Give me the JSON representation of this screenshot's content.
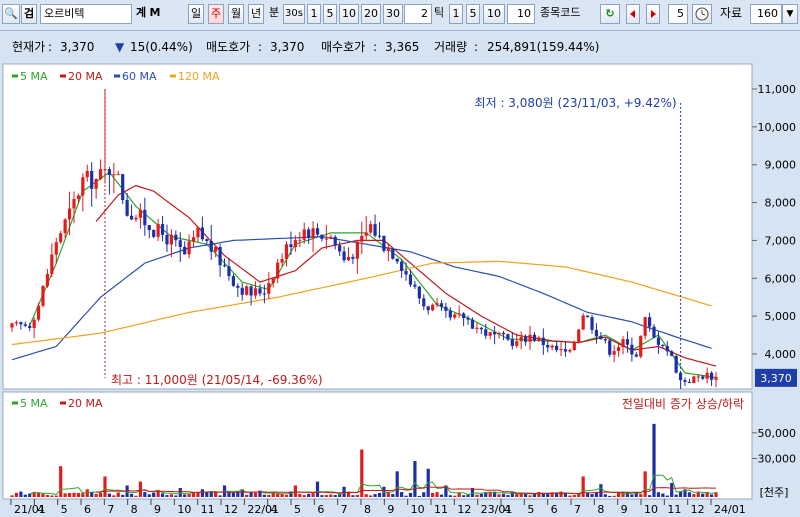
{
  "toolbar": {
    "search_icon_glyph": "🔍",
    "search_button_label": "검",
    "stock_name": "오르비텍",
    "btn_gye": "계",
    "btn_m": "M",
    "period_tabs": [
      "일",
      "주",
      "월",
      "년",
      "분",
      "30s",
      "1",
      "5",
      "10",
      "20",
      "30"
    ],
    "selected_period": "주",
    "tick_value": "2",
    "tick_label": "틱",
    "tick_buttons": [
      "1",
      "5",
      "10"
    ],
    "tick_input": "10",
    "compare_label": "종목코드",
    "scroll_value": "5",
    "data_label": "자료",
    "data_count": "160",
    "dropdown_glyph": "▼"
  },
  "quote": {
    "price_label": "현재가",
    "price": "3,370",
    "change_arrow": "▼",
    "change": "15(0.44%)",
    "ask_label": "매도호가",
    "ask": "3,370",
    "bid_label": "매수호가",
    "bid": "3,365",
    "volume_label": "거래량",
    "volume": "254,891(159.44%)"
  },
  "colors": {
    "ma5": "#2ca52c",
    "ma20": "#c21818",
    "ma60": "#2a4fb0",
    "ma120": "#f0a21e",
    "up": "#e21b1b",
    "down": "#1c2fa8",
    "accent_blue": "#1f3ea8"
  },
  "chart_data": [
    {
      "type": "candlestick",
      "legend": [
        "5 MA",
        "20 MA",
        "60 MA",
        "120 MA"
      ],
      "ylim": [
        3000,
        11300
      ],
      "y_ticks": [
        "4,000",
        "5,000",
        "6,000",
        "7,000",
        "8,000",
        "9,000",
        "10,000",
        "11,000"
      ],
      "x_ticks": [
        "21/01",
        "4",
        "5",
        "6",
        "7",
        "8",
        "9",
        "10",
        "11",
        "12",
        "22/01",
        "4",
        "5",
        "6",
        "7",
        "8",
        "9",
        "10",
        "11",
        "12",
        "23/01",
        "4",
        "5",
        "6",
        "7",
        "8",
        "9",
        "10",
        "11",
        "12",
        "24/01"
      ],
      "last_price": "3,370",
      "last_value": 3370,
      "annotations": [
        "최저 : 3,080원 (23/11/03, +9.42%)",
        "최고 : 11,000원 (21/05/14, -69.36%)"
      ],
      "close_anchors": [
        [
          0,
          4700
        ],
        [
          4,
          4800
        ],
        [
          6,
          5300
        ],
        [
          10,
          7000
        ],
        [
          13,
          7700
        ],
        [
          16,
          8600
        ],
        [
          19,
          8600
        ],
        [
          21,
          8800
        ],
        [
          23,
          9000
        ],
        [
          26,
          7800
        ],
        [
          29,
          7600
        ],
        [
          32,
          7300
        ],
        [
          36,
          7000
        ],
        [
          39,
          6600
        ],
        [
          42,
          7200
        ],
        [
          45,
          6800
        ],
        [
          48,
          6300
        ],
        [
          51,
          5800
        ],
        [
          54,
          5600
        ],
        [
          57,
          5700
        ],
        [
          60,
          6400
        ],
        [
          63,
          7000
        ],
        [
          66,
          7300
        ],
        [
          69,
          7200
        ],
        [
          72,
          7100
        ],
        [
          75,
          6500
        ],
        [
          78,
          6800
        ],
        [
          81,
          7400
        ],
        [
          84,
          6900
        ],
        [
          87,
          6600
        ],
        [
          90,
          5900
        ],
        [
          93,
          5300
        ],
        [
          96,
          5200
        ],
        [
          99,
          4900
        ],
        [
          102,
          5000
        ],
        [
          105,
          4700
        ],
        [
          108,
          4500
        ],
        [
          111,
          4400
        ],
        [
          114,
          4300
        ],
        [
          117,
          4500
        ],
        [
          120,
          4300
        ],
        [
          123,
          4100
        ],
        [
          126,
          4000
        ],
        [
          129,
          5100
        ],
        [
          132,
          4600
        ],
        [
          135,
          4100
        ],
        [
          138,
          4300
        ],
        [
          141,
          4000
        ],
        [
          143,
          4900
        ],
        [
          145,
          4400
        ],
        [
          147,
          4300
        ],
        [
          149,
          3900
        ],
        [
          151,
          3300
        ],
        [
          153,
          3300
        ],
        [
          155,
          3400
        ],
        [
          157,
          3450
        ],
        [
          159,
          3370
        ]
      ],
      "ma_anchors": {
        "ma5": [
          [
            4,
            4750
          ],
          [
            10,
            6400
          ],
          [
            16,
            8300
          ],
          [
            22,
            8800
          ],
          [
            28,
            7900
          ],
          [
            36,
            7100
          ],
          [
            44,
            6900
          ],
          [
            52,
            5900
          ],
          [
            58,
            5700
          ],
          [
            64,
            6900
          ],
          [
            72,
            7200
          ],
          [
            80,
            7200
          ],
          [
            88,
            6500
          ],
          [
            96,
            5300
          ],
          [
            104,
            4900
          ],
          [
            112,
            4400
          ],
          [
            120,
            4350
          ],
          [
            128,
            4300
          ],
          [
            134,
            4500
          ],
          [
            140,
            4100
          ],
          [
            146,
            4500
          ],
          [
            152,
            3500
          ],
          [
            159,
            3380
          ]
        ],
        "ma20": [
          [
            19,
            7500
          ],
          [
            24,
            8200
          ],
          [
            28,
            8450
          ],
          [
            32,
            8300
          ],
          [
            40,
            7600
          ],
          [
            48,
            6600
          ],
          [
            56,
            5900
          ],
          [
            64,
            6200
          ],
          [
            70,
            6800
          ],
          [
            78,
            7000
          ],
          [
            84,
            7000
          ],
          [
            90,
            6400
          ],
          [
            98,
            5600
          ],
          [
            106,
            5000
          ],
          [
            114,
            4500
          ],
          [
            122,
            4350
          ],
          [
            128,
            4300
          ],
          [
            134,
            4450
          ],
          [
            140,
            4100
          ],
          [
            146,
            4200
          ],
          [
            152,
            3900
          ],
          [
            159,
            3680
          ]
        ],
        "ma60": [
          [
            0,
            3850
          ],
          [
            10,
            4200
          ],
          [
            20,
            5500
          ],
          [
            30,
            6400
          ],
          [
            40,
            6800
          ],
          [
            50,
            7000
          ],
          [
            60,
            7050
          ],
          [
            70,
            7100
          ],
          [
            80,
            6900
          ],
          [
            90,
            6700
          ],
          [
            100,
            6300
          ],
          [
            110,
            6050
          ],
          [
            120,
            5600
          ],
          [
            130,
            5100
          ],
          [
            140,
            4850
          ],
          [
            150,
            4450
          ],
          [
            158,
            4150
          ]
        ],
        "ma120": [
          [
            0,
            4250
          ],
          [
            20,
            4550
          ],
          [
            40,
            5100
          ],
          [
            60,
            5500
          ],
          [
            80,
            6000
          ],
          [
            95,
            6400
          ],
          [
            110,
            6450
          ],
          [
            125,
            6300
          ],
          [
            140,
            5900
          ],
          [
            158,
            5270
          ]
        ]
      }
    },
    {
      "type": "bar",
      "title": "전일대비 증가 상승/하락",
      "legend": [
        "5 MA",
        "20 MA"
      ],
      "y_ticks": [
        "30,000",
        "50,000"
      ],
      "unit": "[천주]",
      "ylim": [
        0,
        62000
      ],
      "spikes": [
        [
          5,
          4000
        ],
        [
          11,
          24000
        ],
        [
          17,
          6000
        ],
        [
          21,
          16000
        ],
        [
          26,
          9000
        ],
        [
          29,
          12000
        ],
        [
          33,
          5000
        ],
        [
          38,
          7000
        ],
        [
          43,
          6000
        ],
        [
          48,
          9000
        ],
        [
          52,
          6000
        ],
        [
          56,
          5000
        ],
        [
          59,
          4000
        ],
        [
          64,
          9000
        ],
        [
          69,
          12000
        ],
        [
          75,
          8000
        ],
        [
          79,
          37000
        ],
        [
          84,
          8000
        ],
        [
          87,
          20000
        ],
        [
          91,
          28000
        ],
        [
          94,
          22000
        ],
        [
          98,
          9000
        ],
        [
          104,
          7000
        ],
        [
          113,
          4000
        ],
        [
          120,
          3000
        ],
        [
          129,
          16000
        ],
        [
          133,
          10000
        ],
        [
          137,
          4000
        ],
        [
          143,
          20000
        ],
        [
          145,
          57000
        ],
        [
          149,
          11000
        ],
        [
          152,
          6000
        ],
        [
          158,
          2000
        ]
      ]
    }
  ]
}
